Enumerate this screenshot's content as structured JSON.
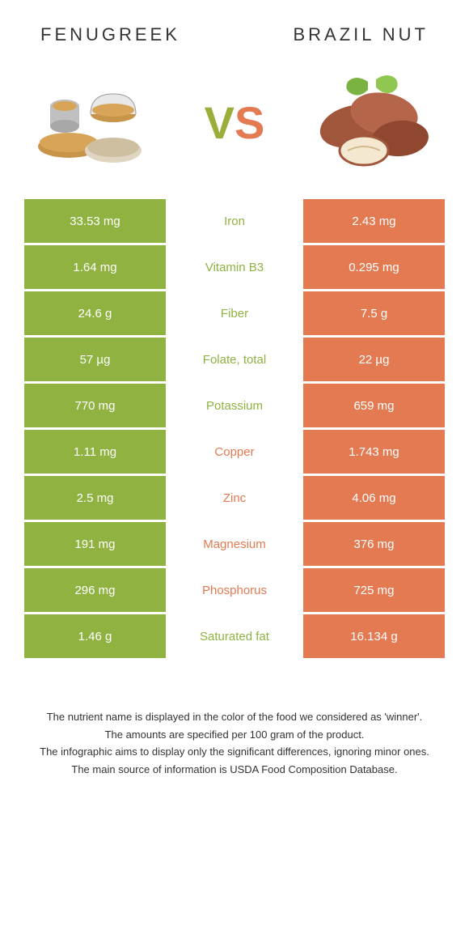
{
  "titles": {
    "left": "Fenugreek",
    "right": "Brazil nut"
  },
  "vs": {
    "v": "V",
    "s": "S"
  },
  "colors": {
    "left": "#8fb241",
    "right": "#e37a52",
    "bg": "#ffffff"
  },
  "rows": [
    {
      "left": "33.53 mg",
      "label": "Iron",
      "right": "2.43 mg",
      "winner": "left"
    },
    {
      "left": "1.64 mg",
      "label": "Vitamin B3",
      "right": "0.295 mg",
      "winner": "left"
    },
    {
      "left": "24.6 g",
      "label": "Fiber",
      "right": "7.5 g",
      "winner": "left"
    },
    {
      "left": "57 µg",
      "label": "Folate, total",
      "right": "22 µg",
      "winner": "left"
    },
    {
      "left": "770 mg",
      "label": "Potassium",
      "right": "659 mg",
      "winner": "left"
    },
    {
      "left": "1.11 mg",
      "label": "Copper",
      "right": "1.743 mg",
      "winner": "right"
    },
    {
      "left": "2.5 mg",
      "label": "Zinc",
      "right": "4.06 mg",
      "winner": "right"
    },
    {
      "left": "191 mg",
      "label": "Magnesium",
      "right": "376 mg",
      "winner": "right"
    },
    {
      "left": "296 mg",
      "label": "Phosphorus",
      "right": "725 mg",
      "winner": "right"
    },
    {
      "left": "1.46 g",
      "label": "Saturated fat",
      "right": "16.134 g",
      "winner": "left"
    }
  ],
  "footnotes": [
    "The nutrient name is displayed in the color of the food we considered as 'winner'.",
    "The amounts are specified per 100 gram of the product.",
    "The infographic aims to display only the significant differences, ignoring minor ones.",
    "The main source of information is USDA Food Composition Database."
  ]
}
